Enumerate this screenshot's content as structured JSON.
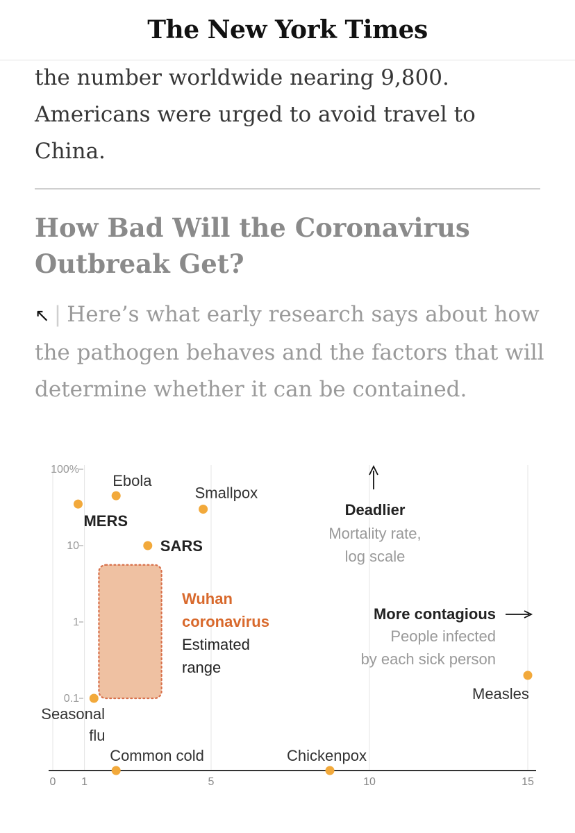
{
  "header": {
    "logo": "The New York Times"
  },
  "article": {
    "text_lines": [
      "the number worldwide nearing 9,800.",
      "Americans were urged to avoid travel to",
      "China."
    ]
  },
  "related": {
    "headline": "How Bad Will the Coronavirus Outbreak Get?",
    "arrow_icon": "arrow-up-left-icon",
    "summary": "Here’s what early research says about how the pathogen behaves and the factors that will determine whether it can be contained."
  },
  "chart_data": {
    "type": "scatter",
    "xlabel": "People infected by each sick person",
    "ylabel": "Mortality rate, log scale",
    "x_ticks": [
      0,
      1,
      5,
      10,
      15
    ],
    "y_ticks": [
      {
        "value": 100,
        "label": "100%"
      },
      {
        "value": 10,
        "label": "10"
      },
      {
        "value": 1,
        "label": "1"
      },
      {
        "value": 0.1,
        "label": "0.1"
      }
    ],
    "xlim": [
      0,
      15.2
    ],
    "ylim": [
      0.01,
      100
    ],
    "y_scale": "log",
    "points": [
      {
        "name": "Ebola",
        "label_lines": [
          "Ebola"
        ],
        "x": 2.0,
        "y": 45,
        "bold": false,
        "label_pos": "above"
      },
      {
        "name": "MERS",
        "label_lines": [
          "MERS"
        ],
        "x": 0.8,
        "y": 35,
        "bold": true,
        "label_pos": "below-right"
      },
      {
        "name": "Smallpox",
        "label_lines": [
          "Smallpox"
        ],
        "x": 4.75,
        "y": 30,
        "bold": false,
        "label_pos": "above"
      },
      {
        "name": "SARS",
        "label_lines": [
          "SARS"
        ],
        "x": 3.0,
        "y": 10,
        "bold": true,
        "label_pos": "right"
      },
      {
        "name": "Seasonal flu",
        "label_lines": [
          "Seasonal",
          "flu"
        ],
        "x": 1.3,
        "y": 0.1,
        "bold": false,
        "label_pos": "below"
      },
      {
        "name": "Measles",
        "label_lines": [
          "Measles"
        ],
        "x": 15.0,
        "y": 0.2,
        "bold": false,
        "label_pos": "below-left"
      },
      {
        "name": "Common cold",
        "label_lines": [
          "Common cold"
        ],
        "x": 2.0,
        "y": 0.01,
        "bold": false,
        "label_pos": "above"
      },
      {
        "name": "Chickenpox",
        "label_lines": [
          "Chickenpox"
        ],
        "x": 8.75,
        "y": 0.01,
        "bold": false,
        "label_pos": "above"
      }
    ],
    "range_box": {
      "x_min": 1.5,
      "x_max": 3.5,
      "y_min": 0.1,
      "y_max": 4,
      "title_lines": [
        "Wuhan",
        "coronavirus"
      ],
      "subtitle_lines": [
        "Estimated",
        "range"
      ]
    },
    "annotations": {
      "deadlier": {
        "title": "Deadlier",
        "lines": [
          "Mortality rate,",
          "log scale"
        ]
      },
      "contagious": {
        "title": "More contagious",
        "lines": [
          "People infected",
          "by each sick person"
        ]
      }
    },
    "colors": {
      "point": "#f2a93b",
      "range_fill": "#efc1a2",
      "range_border": "#d8704a",
      "range_text": "#d8692c"
    }
  }
}
